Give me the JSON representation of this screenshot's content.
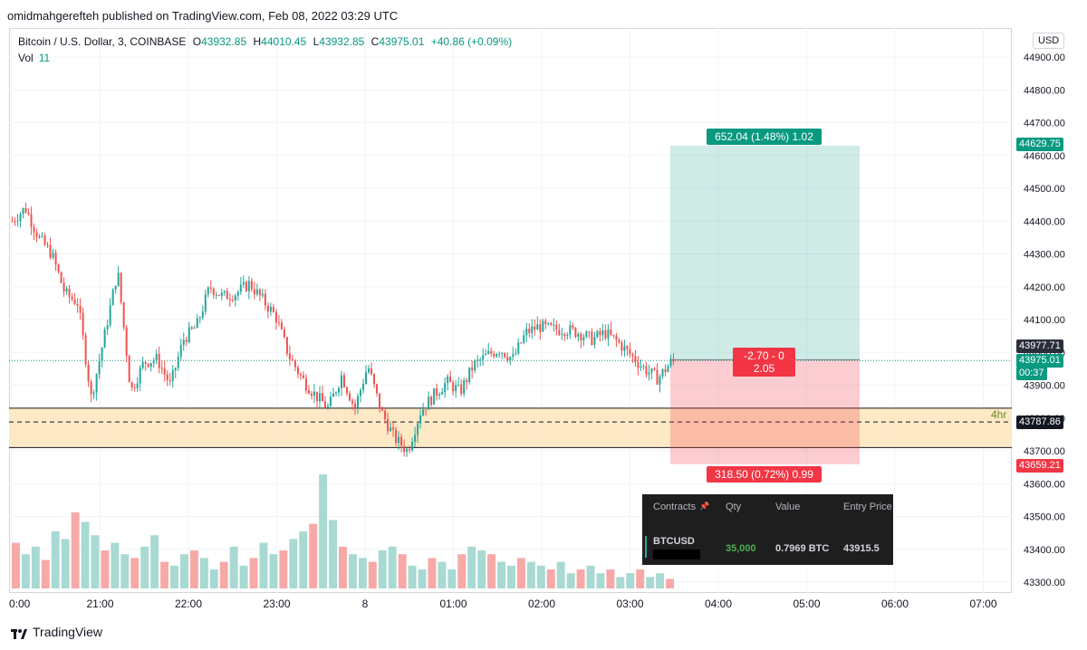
{
  "header": {
    "published": "omidmahgerefteh published on TradingView.com, Feb 08, 2022 03:29 UTC"
  },
  "legend": {
    "symbol": "Bitcoin / U.S. Dollar, 3, COINBASE",
    "o_label": "O",
    "o_value": "43932.85",
    "h_label": "H",
    "h_value": "44010.45",
    "l_label": "L",
    "l_value": "43932.85",
    "c_label": "C",
    "c_value": "43975.01",
    "change": "+40.86 (+0.09%)",
    "vol_label": "Vol",
    "vol_value": "11"
  },
  "currency": "USD",
  "price_tags": {
    "target": "44629.75",
    "high_mark": "43977.71",
    "last": "43975.01",
    "countdown": "00:37",
    "zone": "43787.86",
    "stop": "43659.21"
  },
  "zone_label": "4hr",
  "position": {
    "profit_label": "652.04 (1.48%) 1.02",
    "center_line1": "-2.70 - 0",
    "center_line2": "2.05",
    "loss_label": "318.50 (0.72%) 0.99"
  },
  "panel": {
    "headers": [
      "Contracts",
      "Qty",
      "Value",
      "Entry Price"
    ],
    "row": {
      "symbol": "BTCUSD",
      "qty": "35,000",
      "value": "0.7969 BTC",
      "entry": "43915.5"
    }
  },
  "footer": {
    "brand": "TradingView"
  },
  "colors": {
    "up": "#26a69a",
    "down": "#ef5350",
    "profit": "#089981",
    "loss": "#f23645"
  },
  "chart_data": {
    "type": "candlestick",
    "x_ticks": [
      "0:00",
      "21:00",
      "22:00",
      "23:00",
      "8",
      "01:00",
      "02:00",
      "03:00",
      "04:00",
      "05:00",
      "06:00",
      "07:00"
    ],
    "y_ticks": [
      "44900.00",
      "44800.00",
      "44700.00",
      "44600.00",
      "44500.00",
      "44400.00",
      "44300.00",
      "44200.00",
      "44100.00",
      "44000.00",
      "43900.00",
      "43800.00",
      "43700.00",
      "43600.00",
      "43500.00",
      "43400.00",
      "43300.00"
    ],
    "ylim": [
      43280,
      44960
    ],
    "close_path": [
      [
        0,
        44400
      ],
      [
        5,
        44440
      ],
      [
        10,
        44350
      ],
      [
        15,
        44300
      ],
      [
        20,
        44180
      ],
      [
        25,
        44150
      ],
      [
        30,
        43860
      ],
      [
        35,
        44050
      ],
      [
        40,
        44250
      ],
      [
        45,
        43880
      ],
      [
        50,
        43970
      ],
      [
        55,
        43980
      ],
      [
        60,
        43900
      ],
      [
        65,
        44040
      ],
      [
        70,
        44080
      ],
      [
        75,
        44200
      ],
      [
        80,
        44170
      ],
      [
        85,
        44180
      ],
      [
        90,
        44210
      ],
      [
        95,
        44160
      ],
      [
        100,
        44110
      ],
      [
        105,
        43990
      ],
      [
        110,
        43920
      ],
      [
        115,
        43870
      ],
      [
        120,
        43830
      ],
      [
        125,
        43930
      ],
      [
        130,
        43830
      ],
      [
        135,
        43960
      ],
      [
        140,
        43820
      ],
      [
        145,
        43740
      ],
      [
        150,
        43700
      ],
      [
        155,
        43820
      ],
      [
        160,
        43870
      ],
      [
        165,
        43910
      ],
      [
        170,
        43880
      ],
      [
        175,
        43960
      ],
      [
        180,
        43990
      ],
      [
        185,
        44010
      ],
      [
        190,
        43980
      ],
      [
        195,
        44060
      ],
      [
        200,
        44080
      ],
      [
        205,
        44070
      ],
      [
        210,
        44070
      ],
      [
        215,
        44060
      ],
      [
        220,
        44040
      ],
      [
        225,
        44060
      ],
      [
        230,
        44030
      ],
      [
        235,
        43990
      ],
      [
        240,
        43950
      ],
      [
        245,
        43920
      ],
      [
        250,
        43970
      ],
      [
        252,
        43975.01
      ]
    ],
    "volume": [
      24,
      18,
      22,
      15,
      30,
      26,
      40,
      35,
      28,
      20,
      24,
      18,
      16,
      22,
      28,
      14,
      12,
      18,
      20,
      16,
      10,
      14,
      22,
      12,
      16,
      24,
      18,
      20,
      26,
      30,
      34,
      60,
      36,
      22,
      18,
      16,
      14,
      20,
      22,
      18,
      12,
      10,
      16,
      14,
      10,
      18,
      22,
      20,
      18,
      14,
      12,
      16,
      14,
      12,
      10,
      14,
      8,
      10,
      12,
      8,
      10,
      6,
      8,
      10,
      6,
      8,
      5
    ],
    "zone": [
      43710,
      43830
    ],
    "zone_midline": 43787.86,
    "position": {
      "entry": 43977.71,
      "target": 44629.75,
      "stop": 43659.21
    }
  }
}
